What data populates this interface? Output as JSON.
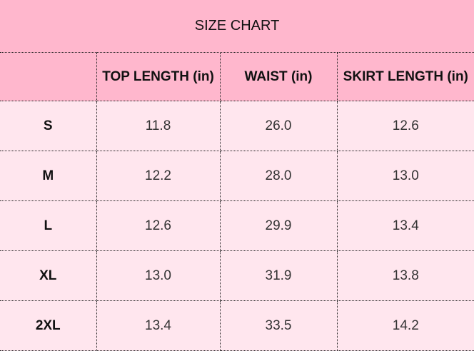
{
  "title": "SIZE CHART",
  "headers": [
    "",
    "TOP LENGTH (in)",
    "WAIST (in)",
    "SKIRT LENGTH (in)"
  ],
  "rows": [
    [
      "S",
      "11.8",
      "26.0",
      "12.6"
    ],
    [
      "M",
      "12.2",
      "28.0",
      "13.0"
    ],
    [
      "L",
      "12.6",
      "29.9",
      "13.4"
    ],
    [
      "XL",
      "13.0",
      "31.9",
      "13.8"
    ],
    [
      "2XL",
      "13.4",
      "33.5",
      "14.2"
    ]
  ],
  "colors": {
    "header_bg": "#ffb7cd",
    "body_bg": "#ffe6ee"
  }
}
